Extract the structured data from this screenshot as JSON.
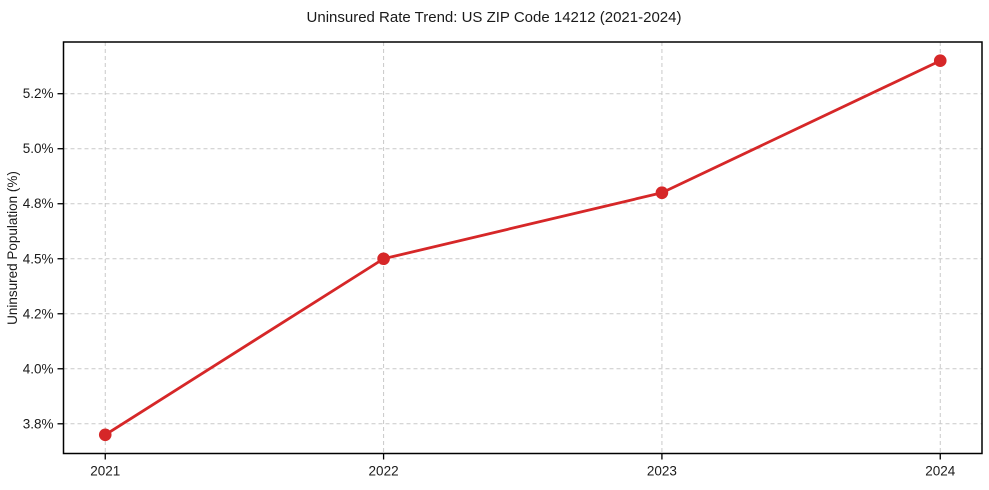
{
  "chart_data": {
    "type": "line",
    "title": "Uninsured Rate Trend: US ZIP Code 14212 (2021-2024)",
    "xlabel": "",
    "ylabel": "Uninsured Population (%)",
    "x": [
      2021,
      2022,
      2023,
      2024
    ],
    "x_tick_labels": [
      "2021",
      "2022",
      "2023",
      "2024"
    ],
    "series": [
      {
        "name": "Uninsured Population (%)",
        "values": [
          3.7,
          4.5,
          4.8,
          5.4
        ]
      }
    ],
    "y_ticks": [
      3.75,
      4.0,
      4.25,
      4.5,
      4.75,
      5.0,
      5.25
    ],
    "y_tick_labels": [
      "3.8%",
      "4.0%",
      "4.2%",
      "4.5%",
      "4.8%",
      "5.0%",
      "5.2%"
    ],
    "xlim": [
      2020.85,
      2024.15
    ],
    "ylim": [
      3.615,
      5.485
    ],
    "grid": true,
    "grid_style": "dashed",
    "legend_position": "none",
    "colors": {
      "line": "#d62728",
      "marker": "#d62728",
      "grid": "#c9c9c9",
      "spine": "#000000",
      "text": "#1a1a1a",
      "background": "#ffffff"
    }
  }
}
